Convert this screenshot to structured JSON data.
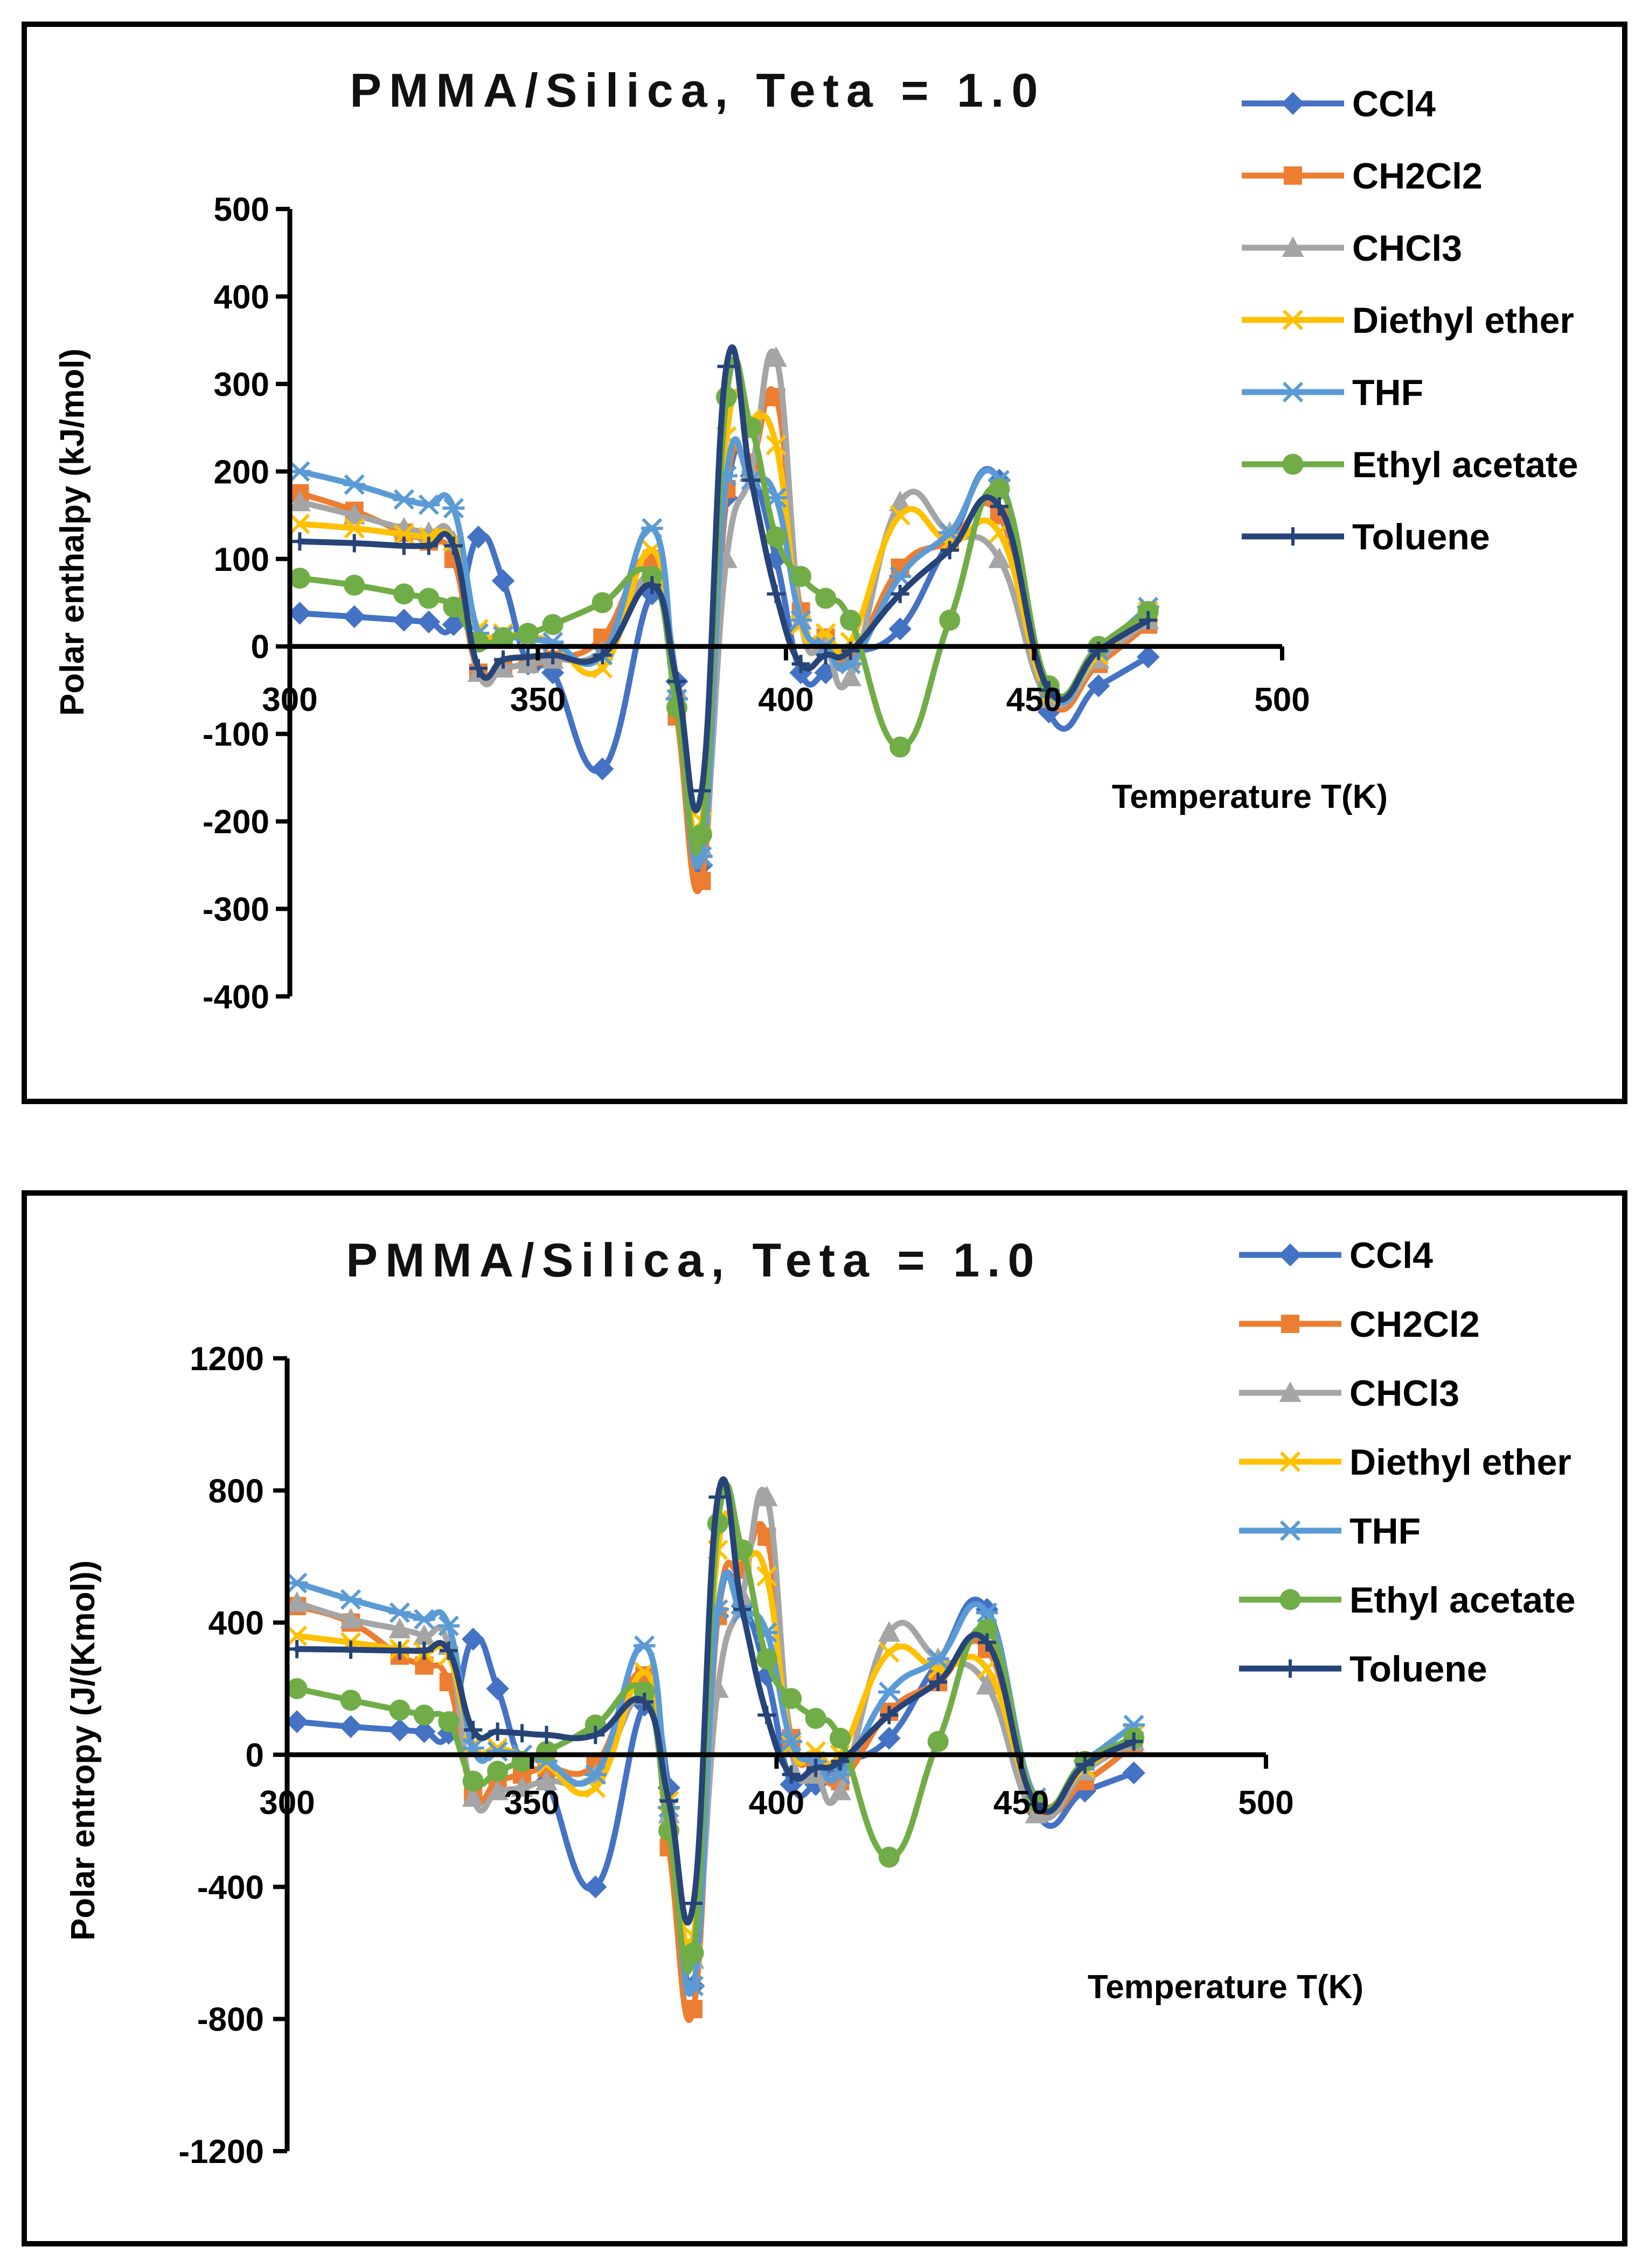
{
  "series_colors": {
    "CCl4": "#4472c4",
    "CH2Cl2": "#ed7d31",
    "CHCl3": "#a5a5a5",
    "Diethyl ether": "#ffc000",
    "THF": "#5b9bd5",
    "Ethyl acetate": "#70ad47",
    "Toluene": "#264478"
  },
  "series_markers": {
    "CCl4": "diamond",
    "CH2Cl2": "square",
    "CHCl3": "triangle",
    "Diethyl ether": "x",
    "THF": "asterisk",
    "Ethyl acetate": "circle",
    "Toluene": "plus"
  },
  "chart_data": [
    {
      "type": "line",
      "title": "PMMA/Silica, Teta = 1.0",
      "xlabel": "Temperature T(K)",
      "ylabel": "Polar enthalpy (kJ/mol)",
      "xlim": [
        300,
        500
      ],
      "ylim": [
        -400,
        500
      ],
      "xticks": [
        300,
        350,
        400,
        450,
        500
      ],
      "xtick_labels": [
        "300",
        "350",
        "400",
        "450",
        "500"
      ],
      "yticks": [
        500,
        400,
        300,
        200,
        100,
        0,
        -100,
        -200,
        -300,
        -400
      ],
      "ytick_labels": [
        "500",
        "400",
        "300",
        "200",
        "100",
        "0",
        "-100",
        "-200",
        "-300",
        "-400"
      ],
      "legend_position": "right",
      "series": [
        {
          "name": "CCl4",
          "x": [
            302,
            313,
            323,
            328,
            333,
            338,
            343,
            348,
            353,
            363,
            373,
            378,
            383,
            388,
            393,
            398,
            403,
            408,
            413,
            423,
            433,
            443,
            453,
            463,
            473
          ],
          "y": [
            38,
            34,
            30,
            28,
            25,
            125,
            75,
            -20,
            -30,
            -140,
            60,
            -40,
            -250,
            170,
            195,
            100,
            -30,
            -30,
            -10,
            20,
            120,
            190,
            -75,
            -45,
            -12
          ]
        },
        {
          "name": "CH2Cl2",
          "x": [
            302,
            313,
            323,
            328,
            333,
            338,
            343,
            348,
            353,
            363,
            373,
            378,
            383,
            388,
            393,
            398,
            403,
            408,
            413,
            423,
            433,
            443,
            453,
            463,
            473
          ],
          "y": [
            175,
            155,
            130,
            120,
            100,
            -30,
            -25,
            -20,
            -15,
            10,
            100,
            -80,
            -268,
            180,
            210,
            285,
            40,
            10,
            -15,
            90,
            120,
            150,
            -60,
            -20,
            25
          ]
        },
        {
          "name": "CHCl3",
          "x": [
            302,
            313,
            323,
            328,
            333,
            338,
            343,
            348,
            353,
            363,
            373,
            378,
            383,
            388,
            393,
            398,
            403,
            408,
            413,
            423,
            433,
            443,
            453,
            463,
            473
          ],
          "y": [
            165,
            150,
            135,
            130,
            120,
            -30,
            -25,
            -20,
            -15,
            -5,
            80,
            -50,
            -230,
            100,
            200,
            330,
            30,
            0,
            -35,
            165,
            130,
            100,
            -60,
            -15,
            30
          ]
        },
        {
          "name": "Diethyl ether",
          "x": [
            302,
            313,
            323,
            328,
            333,
            338,
            343,
            348,
            353,
            363,
            373,
            378,
            383,
            388,
            393,
            398,
            403,
            408,
            413,
            423,
            433,
            443,
            453,
            463,
            473
          ],
          "y": [
            140,
            135,
            128,
            125,
            120,
            20,
            15,
            10,
            5,
            -25,
            110,
            -60,
            -200,
            240,
            260,
            230,
            25,
            15,
            5,
            150,
            120,
            130,
            -55,
            -10,
            40
          ]
        },
        {
          "name": "THF",
          "x": [
            302,
            313,
            323,
            328,
            333,
            338,
            343,
            348,
            353,
            363,
            373,
            378,
            383,
            388,
            393,
            398,
            403,
            408,
            413,
            423,
            433,
            443,
            453,
            463,
            473
          ],
          "y": [
            200,
            185,
            168,
            162,
            158,
            15,
            12,
            8,
            5,
            -10,
            135,
            -60,
            -240,
            195,
            190,
            170,
            30,
            0,
            -20,
            80,
            130,
            190,
            -50,
            -5,
            45
          ]
        },
        {
          "name": "Ethyl acetate",
          "x": [
            302,
            313,
            323,
            328,
            333,
            338,
            343,
            348,
            353,
            363,
            373,
            378,
            383,
            388,
            393,
            398,
            403,
            408,
            413,
            423,
            433,
            443,
            453,
            463,
            473
          ],
          "y": [
            78,
            70,
            60,
            55,
            45,
            5,
            10,
            15,
            25,
            50,
            80,
            -70,
            -215,
            285,
            250,
            125,
            80,
            55,
            30,
            -115,
            30,
            180,
            -45,
            0,
            40
          ]
        },
        {
          "name": "Toluene",
          "x": [
            302,
            313,
            323,
            328,
            333,
            338,
            343,
            348,
            353,
            363,
            373,
            378,
            383,
            388,
            393,
            398,
            403,
            408,
            413,
            423,
            433,
            443,
            453,
            463,
            473
          ],
          "y": [
            120,
            118,
            115,
            115,
            115,
            -25,
            -15,
            -12,
            -10,
            -10,
            70,
            -40,
            -165,
            320,
            190,
            60,
            -20,
            -10,
            -5,
            60,
            110,
            160,
            -50,
            -5,
            30
          ]
        }
      ]
    },
    {
      "type": "line",
      "title": "PMMA/Silica, Teta = 1.0",
      "xlabel": "Temperature T(K)",
      "ylabel": "Polar entropy (J/(Kmol))",
      "xlim": [
        300,
        500
      ],
      "ylim": [
        -1200,
        1200
      ],
      "xticks": [
        300,
        350,
        400,
        450,
        500
      ],
      "xtick_labels": [
        "300",
        "350",
        "400",
        "450",
        "500"
      ],
      "yticks": [
        1200,
        800,
        400,
        0,
        -400,
        -800,
        -1200
      ],
      "ytick_labels": [
        "1200",
        "800",
        "400",
        "0",
        "-400",
        "-800",
        "-1200"
      ],
      "legend_position": "right",
      "series": [
        {
          "name": "CCl4",
          "x": [
            302,
            313,
            323,
            328,
            333,
            338,
            343,
            348,
            353,
            363,
            373,
            378,
            383,
            388,
            393,
            398,
            403,
            408,
            413,
            423,
            433,
            443,
            453,
            463,
            473
          ],
          "y": [
            100,
            85,
            75,
            70,
            65,
            350,
            200,
            -30,
            -80,
            -400,
            150,
            -100,
            -700,
            420,
            450,
            240,
            -90,
            -90,
            -30,
            50,
            280,
            440,
            -170,
            -110,
            -55
          ]
        },
        {
          "name": "CH2Cl2",
          "x": [
            302,
            313,
            323,
            328,
            333,
            338,
            343,
            348,
            353,
            363,
            373,
            378,
            383,
            388,
            393,
            398,
            403,
            408,
            413,
            423,
            433,
            443,
            453,
            463,
            473
          ],
          "y": [
            450,
            400,
            300,
            270,
            220,
            -120,
            -80,
            -60,
            -40,
            -30,
            240,
            -280,
            -770,
            420,
            560,
            660,
            50,
            -20,
            -80,
            130,
            220,
            320,
            -150,
            -80,
            30
          ]
        },
        {
          "name": "CHCl3",
          "x": [
            302,
            313,
            323,
            328,
            333,
            338,
            343,
            348,
            353,
            363,
            373,
            378,
            383,
            388,
            393,
            398,
            403,
            408,
            413,
            423,
            433,
            443,
            453,
            463,
            473
          ],
          "y": [
            460,
            410,
            380,
            360,
            330,
            -130,
            -110,
            -100,
            -80,
            -60,
            180,
            -180,
            -620,
            200,
            480,
            780,
            20,
            -60,
            -110,
            370,
            290,
            210,
            -180,
            -50,
            40
          ]
        },
        {
          "name": "Diethyl ether",
          "x": [
            302,
            313,
            323,
            328,
            333,
            338,
            343,
            348,
            353,
            363,
            373,
            378,
            383,
            388,
            393,
            398,
            403,
            408,
            413,
            423,
            433,
            443,
            453,
            463,
            473
          ],
          "y": [
            360,
            340,
            320,
            310,
            300,
            30,
            20,
            0,
            -30,
            -100,
            250,
            -140,
            -550,
            620,
            600,
            540,
            30,
            10,
            0,
            310,
            260,
            260,
            -140,
            -40,
            60
          ]
        },
        {
          "name": "THF",
          "x": [
            302,
            313,
            323,
            328,
            333,
            338,
            343,
            348,
            353,
            363,
            373,
            378,
            383,
            388,
            393,
            398,
            403,
            408,
            413,
            423,
            433,
            443,
            453,
            463,
            473
          ],
          "y": [
            520,
            470,
            430,
            410,
            390,
            20,
            10,
            0,
            -20,
            -60,
            330,
            -160,
            -700,
            440,
            430,
            370,
            40,
            -20,
            -60,
            190,
            290,
            430,
            -130,
            -20,
            90
          ]
        },
        {
          "name": "Ethyl acetate",
          "x": [
            302,
            313,
            323,
            328,
            333,
            338,
            343,
            348,
            353,
            363,
            373,
            378,
            383,
            388,
            393,
            398,
            403,
            408,
            413,
            423,
            433,
            443,
            453,
            463,
            473
          ],
          "y": [
            200,
            165,
            135,
            120,
            100,
            -80,
            -50,
            -20,
            10,
            90,
            190,
            -230,
            -600,
            700,
            620,
            290,
            170,
            110,
            50,
            -310,
            40,
            380,
            -140,
            -20,
            50
          ]
        },
        {
          "name": "Toluene",
          "x": [
            302,
            313,
            323,
            328,
            333,
            338,
            343,
            348,
            353,
            363,
            373,
            378,
            383,
            388,
            393,
            398,
            403,
            408,
            413,
            423,
            433,
            443,
            453,
            463,
            473
          ],
          "y": [
            320,
            318,
            315,
            315,
            315,
            75,
            70,
            65,
            60,
            60,
            160,
            -140,
            -450,
            780,
            440,
            120,
            -60,
            -40,
            -20,
            120,
            220,
            340,
            -150,
            -30,
            40
          ]
        }
      ]
    }
  ]
}
